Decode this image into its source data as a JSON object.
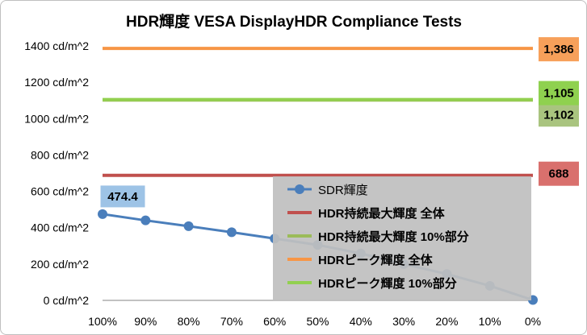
{
  "chart_data": {
    "type": "line",
    "title": "HDR輝度 VESA DisplayHDR Compliance Tests",
    "categories": [
      "100%",
      "90%",
      "80%",
      "70%",
      "60%",
      "50%",
      "40%",
      "30%",
      "20%",
      "10%",
      "0%"
    ],
    "ylim": [
      0,
      1400
    ],
    "y_ticks": [
      "0 cd/m^2",
      "200 cd/m^2",
      "400 cd/m^2",
      "600 cd/m^2",
      "800 cd/m^2",
      "1000 cd/m^2",
      "1200 cd/m^2",
      "1400 cd/m^2"
    ],
    "grid": false,
    "legend_position": "bottom-right, overlapping plot",
    "series": [
      {
        "name": "SDR輝度",
        "style": "line-marker",
        "color": "#4a7ebb",
        "values": [
          474.4,
          440,
          408,
          375,
          340,
          305,
          258,
          200,
          145,
          80,
          2
        ],
        "data_label": {
          "index": 0,
          "text": "474.4",
          "bg": "#9dc3e6"
        }
      },
      {
        "name": "HDR持続最大輝度 全体",
        "style": "hline",
        "color": "#c0504d",
        "value": 688,
        "data_label": {
          "text": "688",
          "bg": "#d9706d"
        }
      },
      {
        "name": "HDR持続最大輝度 10%部分",
        "style": "hline",
        "color": "#9bbb59",
        "value": 1102,
        "data_label": {
          "text": "1,102",
          "bg": "#a9c47f"
        }
      },
      {
        "name": "HDRピーク輝度 全体",
        "style": "hline",
        "color": "#f79646",
        "value": 1386,
        "data_label": {
          "text": "1,386",
          "bg": "#f7a05a"
        }
      },
      {
        "name": "HDRピーク輝度 10%部分",
        "style": "hline",
        "color": "#92d050",
        "value": 1105,
        "data_label": {
          "text": "1,105",
          "bg": "#8fd14f"
        }
      }
    ]
  }
}
